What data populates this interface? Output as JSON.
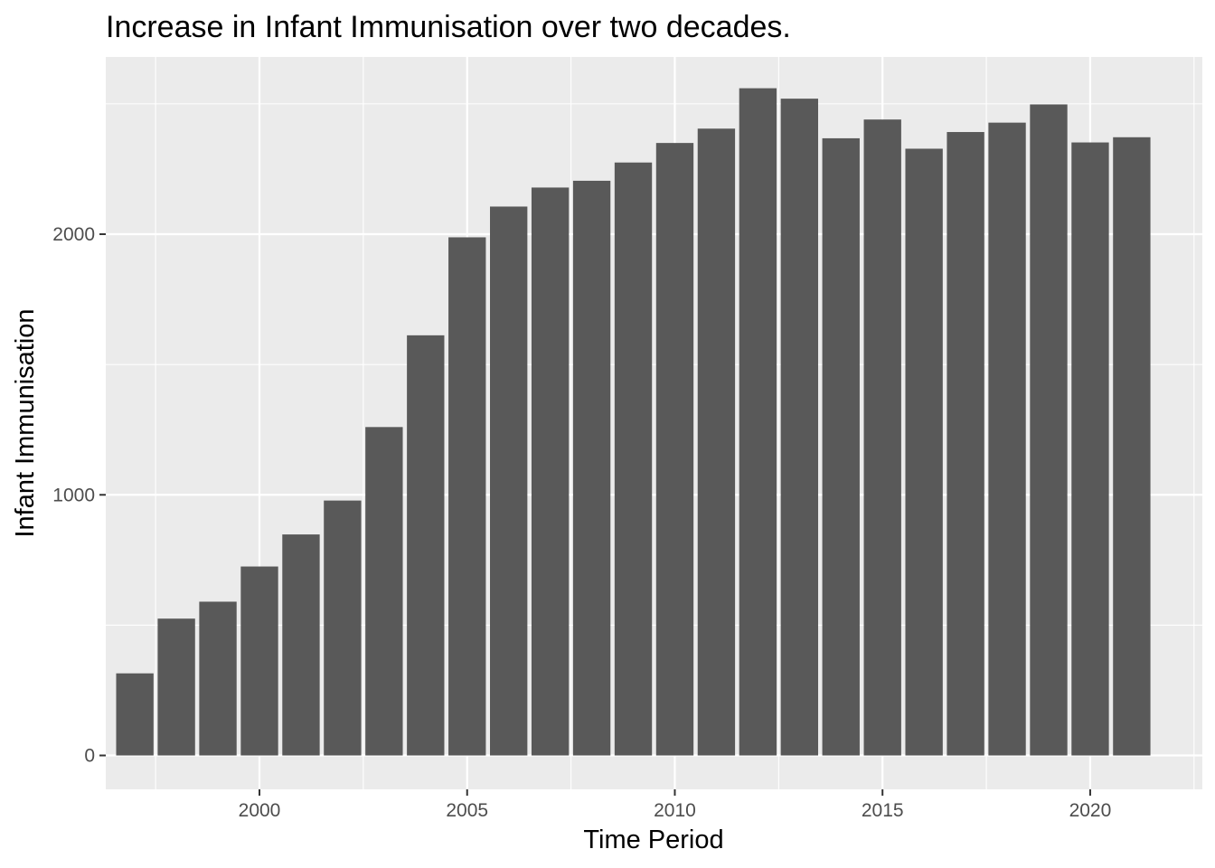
{
  "chart_data": {
    "type": "bar",
    "title": "Increase in Infant Immunisation over two decades.",
    "xlabel": "Time Period",
    "ylabel": "Infant Immunisation",
    "x": [
      1997,
      1998,
      1999,
      2000,
      2001,
      2002,
      2003,
      2004,
      2005,
      2006,
      2007,
      2008,
      2009,
      2010,
      2011,
      2012,
      2013,
      2014,
      2015,
      2016,
      2017,
      2018,
      2019,
      2020,
      2021
    ],
    "values": [
      315,
      525,
      590,
      725,
      848,
      978,
      1260,
      1612,
      1988,
      2106,
      2179,
      2205,
      2275,
      2350,
      2405,
      2560,
      2520,
      2368,
      2440,
      2328,
      2392,
      2428,
      2498,
      2352,
      2372
    ],
    "xlim": [
      1996.3,
      2022.7
    ],
    "ylim": [
      -130,
      2680
    ],
    "xticks": [
      2000,
      2005,
      2010,
      2015,
      2020
    ],
    "yticks": [
      0,
      1000,
      2000
    ],
    "grid": true,
    "colors": {
      "bar": "#595959",
      "panel": "#ebebeb",
      "grid": "#ffffff",
      "tick": "#333333"
    }
  }
}
